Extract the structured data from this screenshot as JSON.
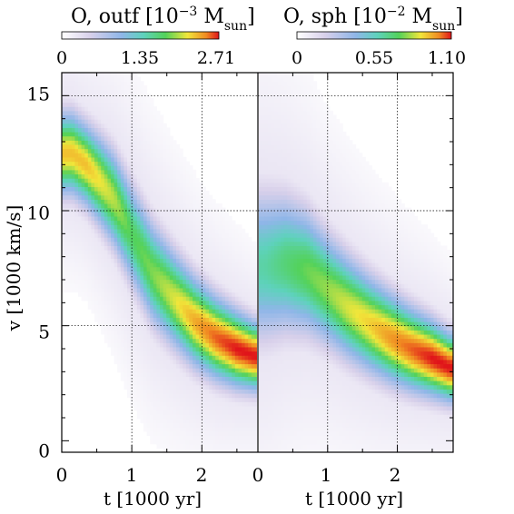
{
  "chart_data": [
    {
      "type": "heatmap",
      "title": "O, outf [10",
      "title_exp": "−3",
      "title_unit": " M",
      "title_sub": "sun",
      "title_end": "]",
      "colorbar": {
        "min": 0,
        "max": 2.71,
        "ticks": [
          "0",
          "1.35",
          "2.71"
        ]
      },
      "xlabel": "t [1000 yr]",
      "ylabel": "v [1000 km/s]",
      "xlim": [
        0,
        2.8
      ],
      "ylim": [
        -0.5,
        16.0
      ],
      "x_ticks": [
        "0",
        "1",
        "2"
      ],
      "y_ticks": [
        "0",
        "5",
        "10",
        "15"
      ],
      "grid": true,
      "ridge": [
        {
          "t": 0.15,
          "v": 12.5,
          "w": 1.2,
          "a": 0.85
        },
        {
          "t": 0.35,
          "v": 12.0,
          "w": 1.2,
          "a": 0.85
        },
        {
          "t": 0.55,
          "v": 11.3,
          "w": 1.3,
          "a": 0.8
        },
        {
          "t": 0.75,
          "v": 10.5,
          "w": 1.4,
          "a": 0.75
        },
        {
          "t": 1.0,
          "v": 9.0,
          "w": 1.5,
          "a": 0.65
        },
        {
          "t": 1.3,
          "v": 7.3,
          "w": 1.5,
          "a": 0.7
        },
        {
          "t": 1.6,
          "v": 6.2,
          "w": 1.4,
          "a": 0.78
        },
        {
          "t": 1.9,
          "v": 5.2,
          "w": 1.3,
          "a": 0.88
        },
        {
          "t": 2.2,
          "v": 4.5,
          "w": 1.2,
          "a": 0.95
        },
        {
          "t": 2.5,
          "v": 4.0,
          "w": 1.1,
          "a": 1.0
        },
        {
          "t": 2.75,
          "v": 3.7,
          "w": 1.0,
          "a": 1.0
        }
      ]
    },
    {
      "type": "heatmap",
      "title": "O, sph [10",
      "title_exp": "−2",
      "title_unit": " M",
      "title_sub": "sun",
      "title_end": "]",
      "colorbar": {
        "min": 0,
        "max": 1.1,
        "ticks": [
          "0",
          "0.55",
          "1.10"
        ]
      },
      "xlabel": "t [1000 yr]",
      "xlim": [
        0,
        2.8
      ],
      "ylim": [
        -0.5,
        16.0
      ],
      "x_ticks": [
        "0",
        "1",
        "2"
      ],
      "grid": true,
      "ridge": [
        {
          "t": 0.1,
          "v": 7.6,
          "w": 2.2,
          "a": 0.55
        },
        {
          "t": 0.4,
          "v": 7.7,
          "w": 2.0,
          "a": 0.62
        },
        {
          "t": 0.7,
          "v": 7.4,
          "w": 1.8,
          "a": 0.68
        },
        {
          "t": 1.0,
          "v": 6.6,
          "w": 1.6,
          "a": 0.72
        },
        {
          "t": 1.3,
          "v": 5.8,
          "w": 1.5,
          "a": 0.78
        },
        {
          "t": 1.6,
          "v": 5.1,
          "w": 1.4,
          "a": 0.83
        },
        {
          "t": 1.9,
          "v": 4.5,
          "w": 1.3,
          "a": 0.9
        },
        {
          "t": 2.2,
          "v": 4.0,
          "w": 1.2,
          "a": 0.95
        },
        {
          "t": 2.5,
          "v": 3.6,
          "w": 1.1,
          "a": 1.0
        },
        {
          "t": 2.75,
          "v": 3.2,
          "w": 1.0,
          "a": 1.0
        }
      ]
    }
  ]
}
